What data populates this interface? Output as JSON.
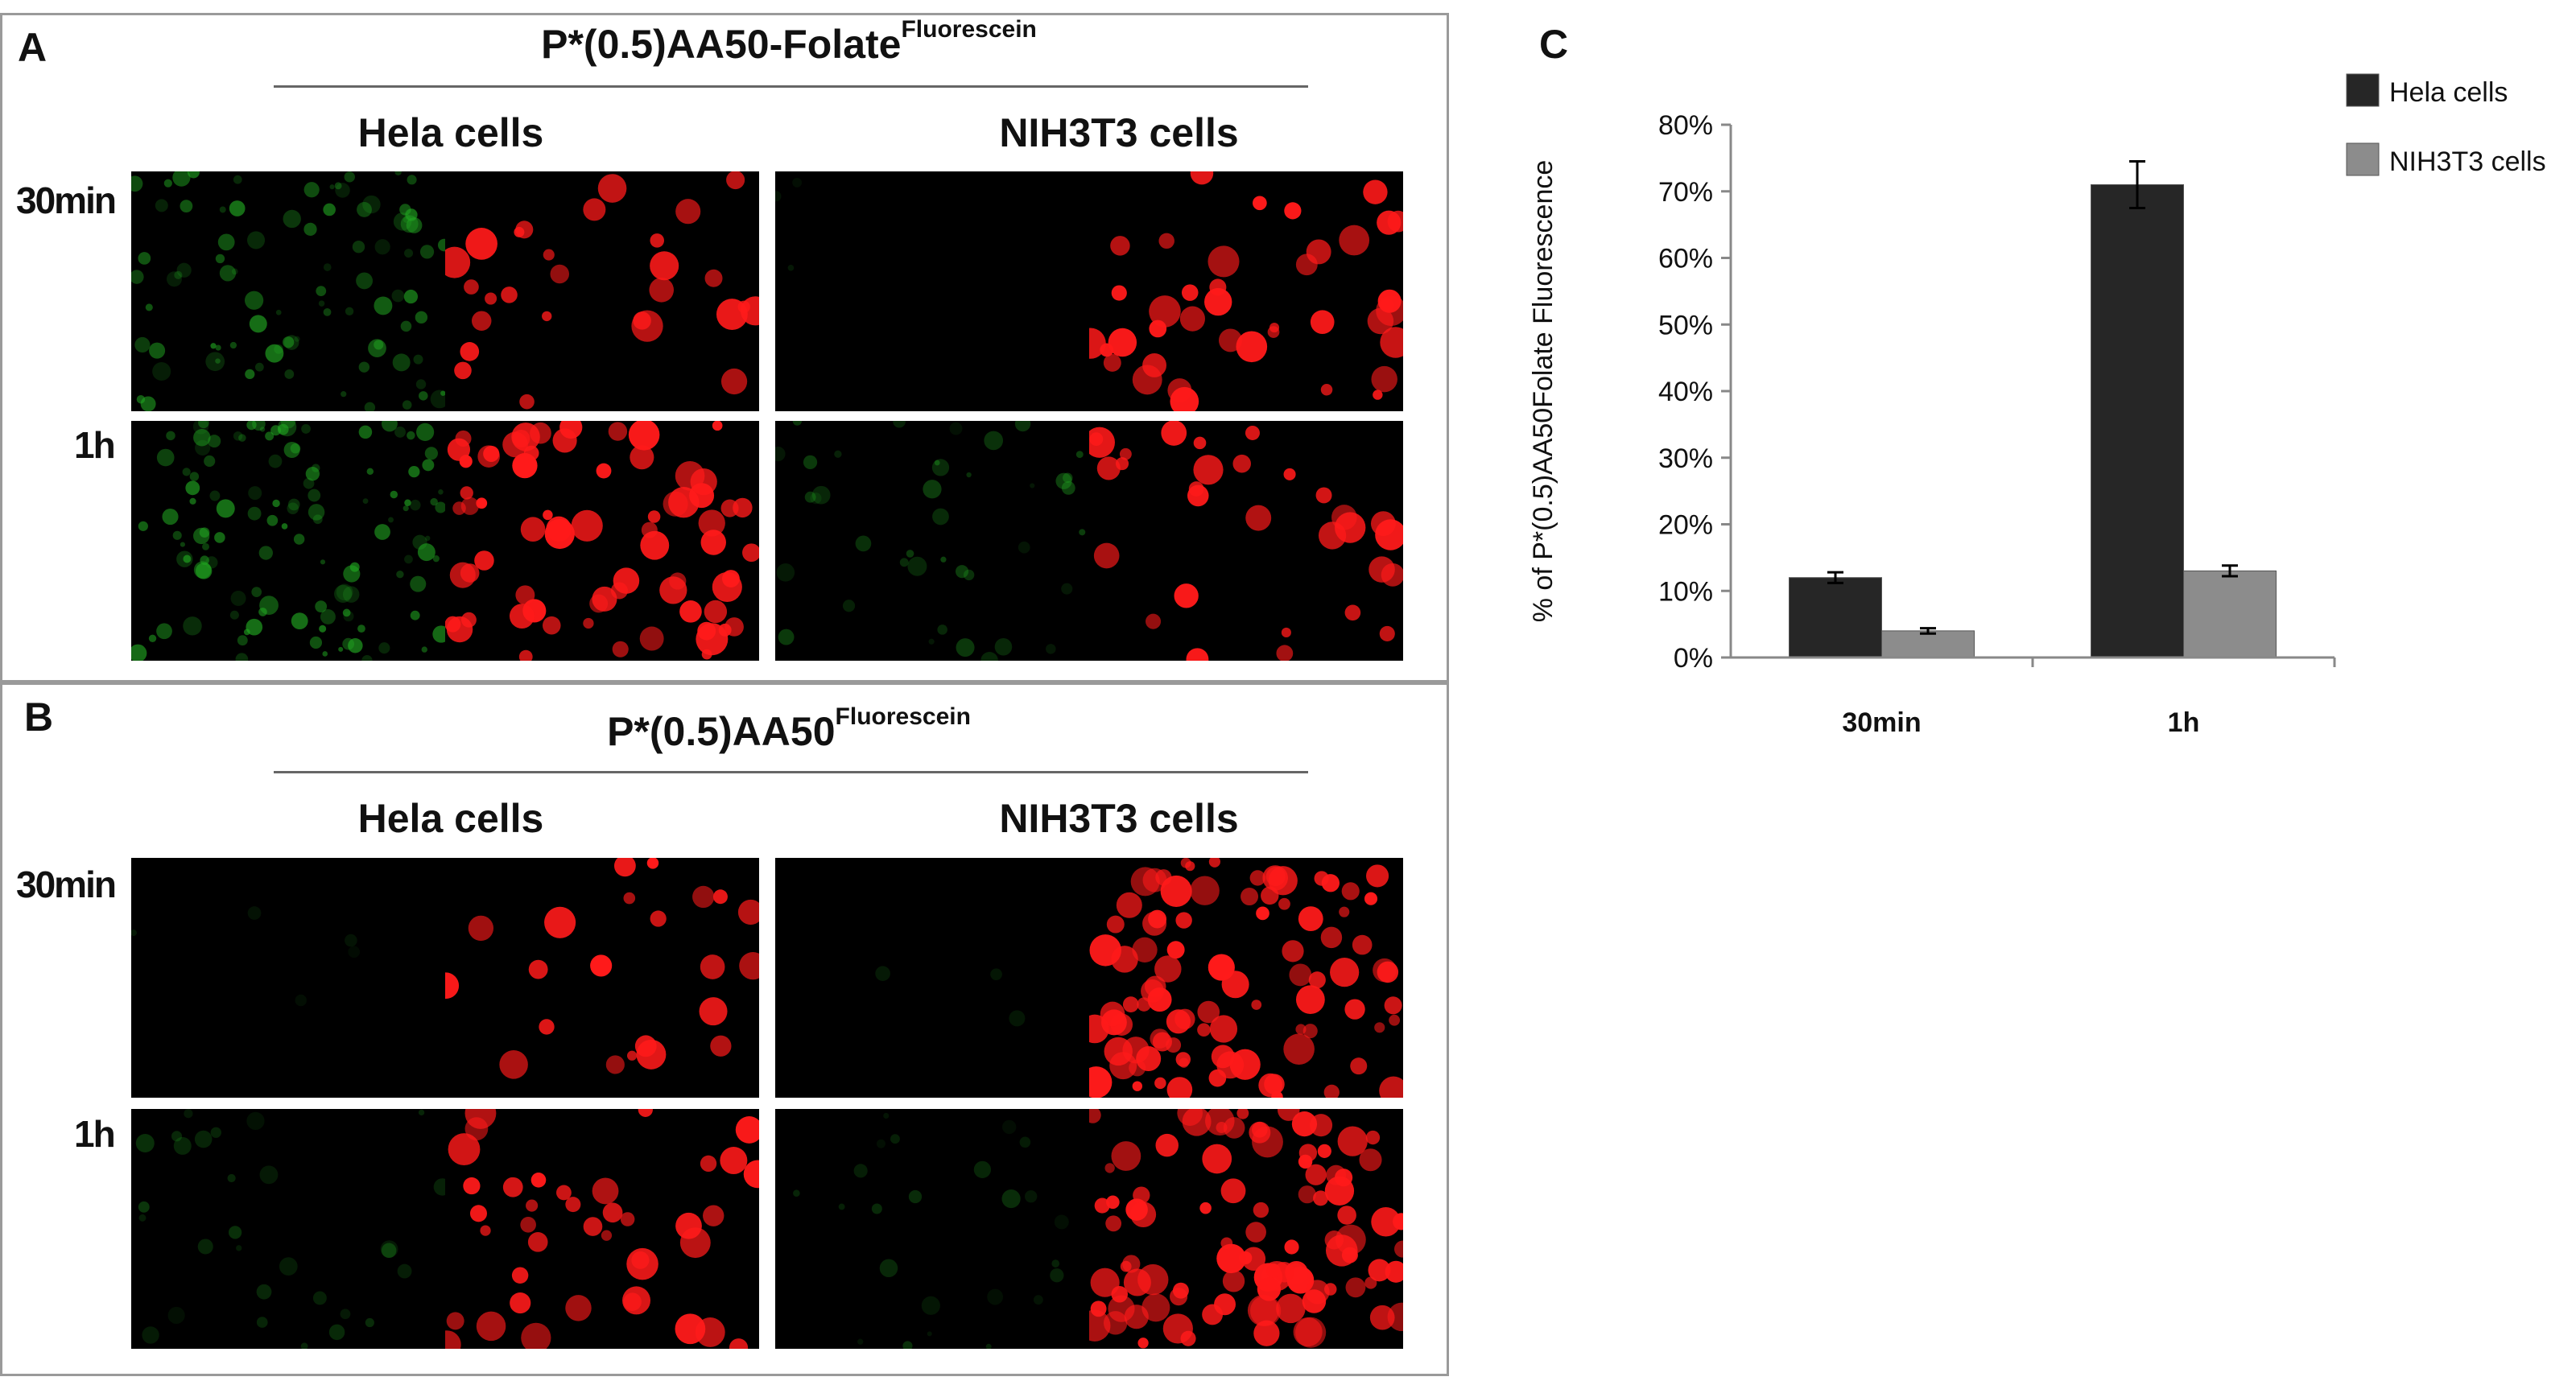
{
  "panels": {
    "a": {
      "letter": "A",
      "title_main": "P*(0.5)AA50-Folate",
      "title_sup": "Fluorescein",
      "cell_labels": [
        "Hela  cells",
        "NIH3T3 cells"
      ],
      "time_labels": [
        "30min",
        "1h"
      ]
    },
    "b": {
      "letter": "B",
      "title_main": "P*(0.5)AA50",
      "title_sup": "Fluorescein",
      "cell_labels": [
        "Hela  cells",
        "NIH3T3 cells"
      ],
      "time_labels": [
        "30min",
        "1h"
      ]
    },
    "c": {
      "letter": "C"
    }
  },
  "micrograph_colors": {
    "green_channel": "#22aa22",
    "red_channel": "#ff1a1a",
    "background": "#000000"
  },
  "chart_data": {
    "type": "bar",
    "categories": [
      "30min",
      "1h"
    ],
    "series": [
      {
        "name": "Hela cells",
        "values": [
          12,
          71
        ],
        "errors": [
          0.8,
          3.5
        ],
        "color": "#262626"
      },
      {
        "name": "NIH3T3 cells",
        "values": [
          4,
          13
        ],
        "errors": [
          0.4,
          0.8
        ],
        "color": "#8c8c8c"
      }
    ],
    "ylabel": "% of P*(0.5)AA50Folate Fluorescence",
    "xlabel": "",
    "ylim": [
      0,
      80
    ],
    "yticks": [
      "0%",
      "10%",
      "20%",
      "30%",
      "40%",
      "50%",
      "60%",
      "70%",
      "80%"
    ],
    "legend_position": "top-right",
    "grid": false
  }
}
